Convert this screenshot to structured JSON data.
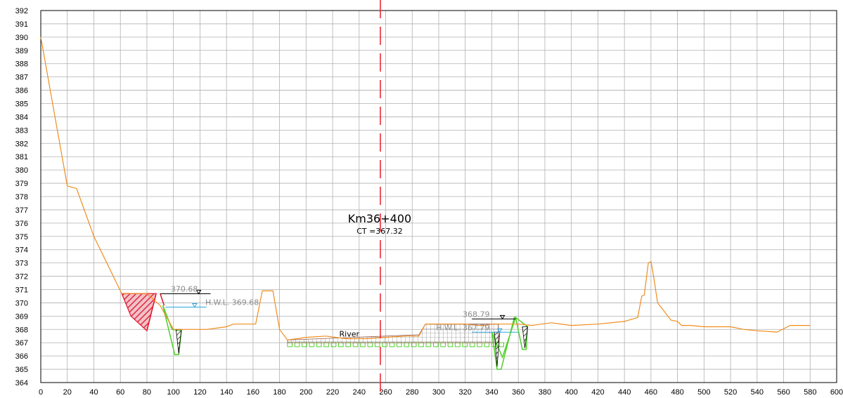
{
  "chart_data": {
    "type": "line",
    "title": "Km36+400",
    "subtitle": "CT =367.32",
    "xlim": [
      0,
      600
    ],
    "ylim": [
      364,
      392
    ],
    "x_ticks": [
      0,
      20,
      40,
      60,
      80,
      100,
      120,
      140,
      160,
      180,
      200,
      220,
      240,
      260,
      280,
      300,
      320,
      340,
      360,
      380,
      400,
      420,
      440,
      460,
      480,
      500,
      520,
      540,
      560,
      580,
      600
    ],
    "y_ticks": [
      364,
      365,
      366,
      367,
      368,
      369,
      370,
      371,
      372,
      373,
      374,
      375,
      376,
      377,
      378,
      379,
      380,
      381,
      382,
      383,
      384,
      385,
      386,
      387,
      388,
      389,
      390,
      391,
      392
    ],
    "grid": true,
    "centerline_x": 256,
    "series": [
      {
        "color": "#f08c1e",
        "x": [
          0,
          20,
          27,
          40,
          61,
          80,
          90,
          100,
          110,
          125,
          140,
          145,
          155,
          162,
          167,
          175,
          180,
          186,
          200,
          215,
          230,
          245,
          260,
          275,
          285,
          290,
          300,
          320,
          330,
          335,
          340,
          350,
          360,
          370,
          385,
          400,
          420,
          440,
          450,
          453,
          455,
          458,
          460,
          462,
          465,
          475,
          480,
          483,
          485,
          490,
          500,
          520,
          530,
          540,
          555,
          565,
          580
        ],
        "y": [
          390,
          378.8,
          378.6,
          375,
          370.7,
          370.7,
          369.8,
          368.0,
          368.0,
          368.0,
          368.2,
          368.4,
          368.4,
          368.4,
          370.9,
          370.9,
          368.0,
          367.2,
          367.4,
          367.5,
          367.3,
          367.3,
          367.4,
          367.5,
          367.5,
          368.4,
          368.4,
          368.4,
          368.3,
          368.3,
          368.4,
          368.4,
          368.4,
          368.3,
          368.5,
          368.3,
          368.4,
          368.6,
          368.9,
          370.5,
          370.6,
          373.0,
          373.1,
          372.0,
          370.0,
          368.7,
          368.6,
          368.3,
          368.3,
          368.3,
          368.2,
          368.2,
          368.0,
          367.9,
          367.8,
          368.3,
          368.3
        ]
      },
      {
        "color": "#2aa7e0",
        "x": [
          94,
          125
        ],
        "y": [
          369.68,
          369.68
        ]
      },
      {
        "color": "#2aa7e0",
        "x": [
          325,
          360
        ],
        "y": [
          367.79,
          367.79
        ]
      }
    ],
    "annotations": [
      {
        "text": "370.68",
        "x": 98,
        "y": 370.68
      },
      {
        "text": "H.W.L.  369.68",
        "x": 124,
        "y": 369.68
      },
      {
        "text": "368.79",
        "x": 318,
        "y": 368.79
      },
      {
        "text": "H.W.L.  367.79",
        "x": 298,
        "y": 367.79
      },
      {
        "text": "River",
        "x": 225,
        "y": 367.3
      }
    ],
    "colors": {
      "ground": "#f08c1e",
      "cut_fill": "#e8102a",
      "ditch": "#4fd02a",
      "water": "#2aa7e0",
      "centerline": "#ec2a35",
      "grid": "#b0b0b0",
      "hatch": "#000000"
    }
  }
}
